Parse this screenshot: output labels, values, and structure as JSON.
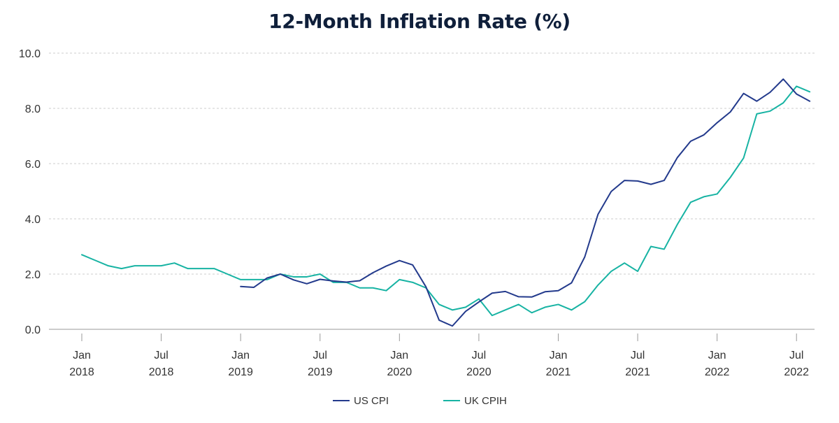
{
  "chart_data": {
    "type": "line",
    "title": "12-Month Inflation Rate (%)",
    "xlabel": "",
    "ylabel": "",
    "ylim": [
      0,
      10
    ],
    "yticks": [
      0,
      2,
      4,
      6,
      8,
      10
    ],
    "ytick_labels": [
      "0.0",
      "2.0",
      "4.0",
      "6.0",
      "8.0",
      "10.0"
    ],
    "x_start": "2018-01",
    "xticks": [
      {
        "date": "2018-01",
        "line1": "Jan",
        "line2": "2018"
      },
      {
        "date": "2018-07",
        "line1": "Jul",
        "line2": "2018"
      },
      {
        "date": "2019-01",
        "line1": "Jan",
        "line2": "2019"
      },
      {
        "date": "2019-07",
        "line1": "Jul",
        "line2": "2019"
      },
      {
        "date": "2020-01",
        "line1": "Jan",
        "line2": "2020"
      },
      {
        "date": "2020-07",
        "line1": "Jul",
        "line2": "2020"
      },
      {
        "date": "2021-01",
        "line1": "Jan",
        "line2": "2021"
      },
      {
        "date": "2021-07",
        "line1": "Jul",
        "line2": "2021"
      },
      {
        "date": "2022-01",
        "line1": "Jan",
        "line2": "2022"
      },
      {
        "date": "2022-07",
        "line1": "Jul",
        "line2": "2022"
      }
    ],
    "grid": true,
    "legend": "bottom-center",
    "series": [
      {
        "name": "US CPI",
        "color": "#233a8c",
        "start": "2019-01",
        "values": [
          1.55,
          1.52,
          1.86,
          2.0,
          1.79,
          1.65,
          1.81,
          1.75,
          1.71,
          1.76,
          2.05,
          2.29,
          2.49,
          2.33,
          1.54,
          0.33,
          0.12,
          0.65,
          0.99,
          1.31,
          1.37,
          1.18,
          1.17,
          1.36,
          1.4,
          1.68,
          2.62,
          4.16,
          4.99,
          5.39,
          5.37,
          5.25,
          5.39,
          6.22,
          6.81,
          7.04,
          7.48,
          7.87,
          8.54,
          8.26,
          8.58,
          9.06,
          8.52,
          8.26
        ]
      },
      {
        "name": "UK CPIH",
        "color": "#17b3a3",
        "start": "2018-01",
        "values": [
          2.7,
          2.5,
          2.3,
          2.2,
          2.3,
          2.3,
          2.3,
          2.4,
          2.2,
          2.2,
          2.2,
          2.0,
          1.8,
          1.8,
          1.8,
          2.0,
          1.9,
          1.9,
          2.0,
          1.7,
          1.7,
          1.5,
          1.5,
          1.4,
          1.8,
          1.7,
          1.5,
          0.9,
          0.7,
          0.8,
          1.1,
          0.5,
          0.7,
          0.9,
          0.6,
          0.8,
          0.9,
          0.7,
          1.0,
          1.6,
          2.1,
          2.4,
          2.1,
          3.0,
          2.9,
          3.8,
          4.6,
          4.8,
          4.9,
          5.5,
          6.2,
          7.8,
          7.9,
          8.2,
          8.8,
          8.6
        ]
      }
    ]
  }
}
